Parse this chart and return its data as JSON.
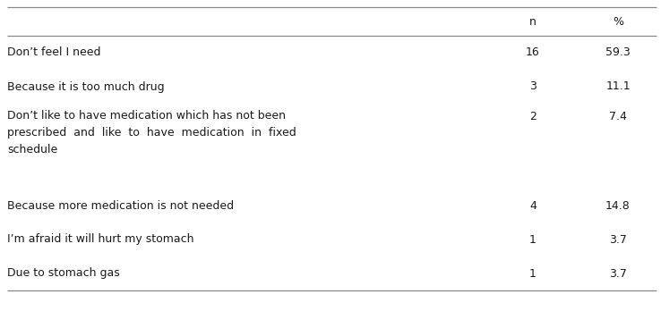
{
  "rows": [
    {
      "label": "Don’t feel I need",
      "n": "16",
      "pct": "59.3",
      "tall": false
    },
    {
      "label": "Because it is too much drug",
      "n": "3",
      "pct": "11.1",
      "tall": false
    },
    {
      "label": "Don’t like to have medication which has not been\nprescribed  and  like  to  have  medication  in  fixed\nschedule",
      "n": "2",
      "pct": "7.4",
      "tall": true
    },
    {
      "label": "Because more medication is not needed",
      "n": "4",
      "pct": "14.8",
      "tall": false
    },
    {
      "label": "I’m afraid it will hurt my stomach",
      "n": "1",
      "pct": "3.7",
      "tall": false
    },
    {
      "label": "Due to stomach gas",
      "n": "1",
      "pct": "3.7",
      "tall": false
    }
  ],
  "col_headers": [
    "n",
    "%"
  ],
  "background_color": "#ffffff",
  "text_color": "#1a1a1a",
  "line_color": "#888888",
  "font_size": 9.0,
  "header_font_size": 9.0,
  "fig_width": 7.38,
  "fig_height": 3.48,
  "dpi": 100
}
